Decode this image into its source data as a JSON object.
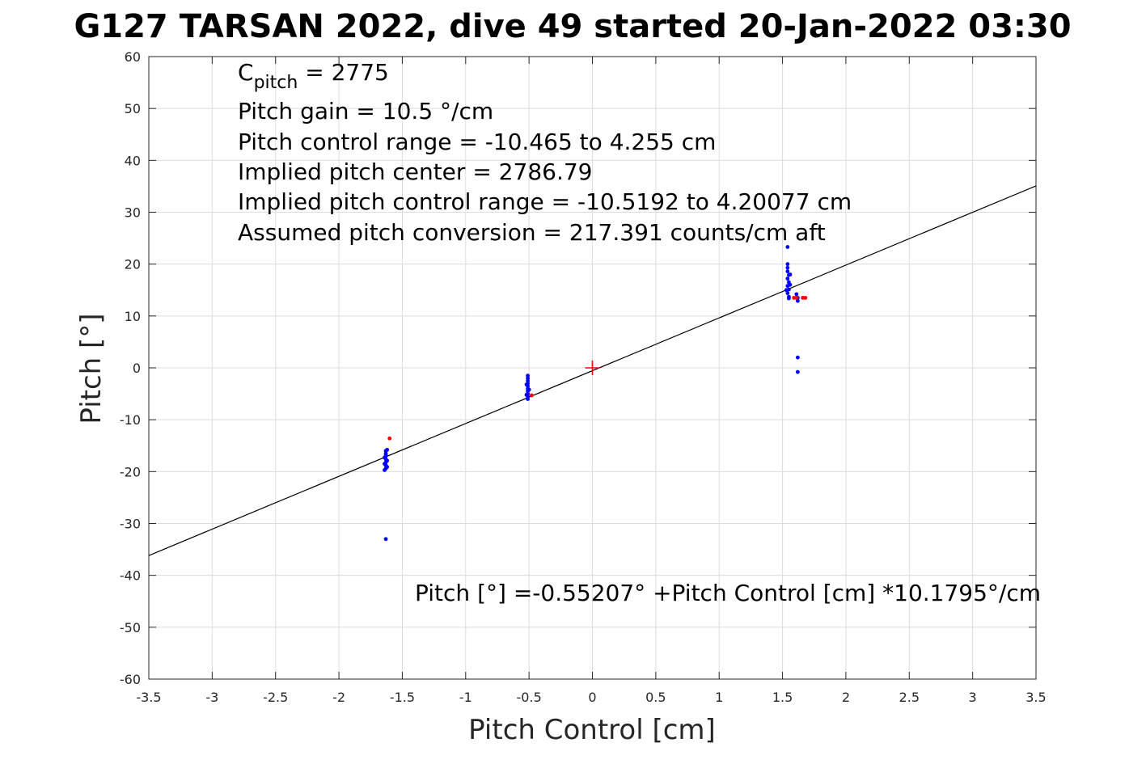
{
  "chart_data": {
    "type": "scatter",
    "title": "G127 TARSAN 2022, dive 49 started 20-Jan-2022 03:30",
    "xlabel": "Pitch Control [cm]",
    "ylabel": "Pitch [°]",
    "xlim": [
      -3.5,
      3.5
    ],
    "ylim": [
      -60,
      60
    ],
    "grid": true,
    "xticks": [
      -3.5,
      -3,
      -2.5,
      -2,
      -1.5,
      -1,
      -0.5,
      0,
      0.5,
      1,
      1.5,
      2,
      2.5,
      3,
      3.5
    ],
    "xtick_labels": [
      "-3.5",
      "-3",
      "-2.5",
      "-2",
      "-1.5",
      "-1",
      "-0.5",
      "0",
      "0.5",
      "1",
      "1.5",
      "2",
      "2.5",
      "3",
      "3.5"
    ],
    "yticks": [
      -60,
      -50,
      -40,
      -30,
      -20,
      -10,
      0,
      10,
      20,
      30,
      40,
      50,
      60
    ],
    "ytick_labels": [
      "-60",
      "-50",
      "-40",
      "-30",
      "-20",
      "-10",
      "0",
      "10",
      "20",
      "30",
      "40",
      "50",
      "60"
    ],
    "annotations": {
      "cpitch_main": "C",
      "cpitch_sub": "pitch",
      "cpitch_value": " = 2775",
      "lines": [
        "Pitch gain = 10.5 °/cm",
        "Pitch control range = -10.465 to 4.255 cm",
        "Implied pitch center = 2786.79",
        "Implied pitch control range = -10.5192 to 4.20077 cm",
        "Assumed pitch conversion = 217.391 counts/cm aft"
      ],
      "fit_equation": "Pitch [°] =-0.55207° +Pitch Control [cm] *10.1795°/cm"
    },
    "fit_line": {
      "intercept": -0.55207,
      "slope": 10.1795
    },
    "center_marker": {
      "x": 0,
      "y": 0,
      "color": "#ff0000"
    },
    "series": [
      {
        "color": "#0000ff",
        "points": [
          [
            -1.63,
            -16.0
          ],
          [
            -1.63,
            -16.5
          ],
          [
            -1.63,
            -17.0
          ],
          [
            -1.64,
            -17.3
          ],
          [
            -1.63,
            -17.6
          ],
          [
            -1.62,
            -17.9
          ],
          [
            -1.63,
            -18.2
          ],
          [
            -1.64,
            -18.5
          ],
          [
            -1.63,
            -18.8
          ],
          [
            -1.62,
            -19.1
          ],
          [
            -1.63,
            -19.4
          ],
          [
            -1.64,
            -19.7
          ],
          [
            -1.63,
            -16.8
          ],
          [
            -1.62,
            -15.8
          ],
          [
            -1.63,
            -33.0
          ],
          [
            -0.51,
            -1.5
          ],
          [
            -0.51,
            -2.0
          ],
          [
            -0.51,
            -2.5
          ],
          [
            -0.51,
            -3.0
          ],
          [
            -0.51,
            -3.5
          ],
          [
            -0.51,
            -4.0
          ],
          [
            -0.51,
            -4.5
          ],
          [
            -0.51,
            -5.0
          ],
          [
            -0.51,
            -5.5
          ],
          [
            -0.51,
            -6.0
          ],
          [
            -0.52,
            -3.2
          ],
          [
            -0.5,
            -4.2
          ],
          [
            -0.52,
            -5.2
          ],
          [
            1.54,
            20.0
          ],
          [
            1.54,
            19.3
          ],
          [
            1.54,
            18.6
          ],
          [
            1.55,
            17.9
          ],
          [
            1.54,
            17.2
          ],
          [
            1.55,
            16.5
          ],
          [
            1.54,
            15.8
          ],
          [
            1.55,
            15.1
          ],
          [
            1.54,
            14.4
          ],
          [
            1.55,
            13.7
          ],
          [
            1.55,
            13.4
          ],
          [
            1.54,
            23.3
          ],
          [
            1.56,
            16.0
          ],
          [
            1.53,
            15.0
          ],
          [
            1.56,
            18.0
          ],
          [
            1.61,
            14.2
          ],
          [
            1.62,
            13.5
          ],
          [
            1.62,
            12.9
          ],
          [
            1.62,
            2.0
          ],
          [
            1.62,
            -0.8
          ]
        ]
      },
      {
        "color": "#ff0000",
        "points": [
          [
            -1.6,
            -13.6
          ],
          [
            -0.48,
            -5.3
          ],
          [
            1.59,
            13.5
          ],
          [
            1.61,
            13.5
          ],
          [
            1.66,
            13.5
          ],
          [
            1.68,
            13.5
          ]
        ]
      }
    ]
  }
}
